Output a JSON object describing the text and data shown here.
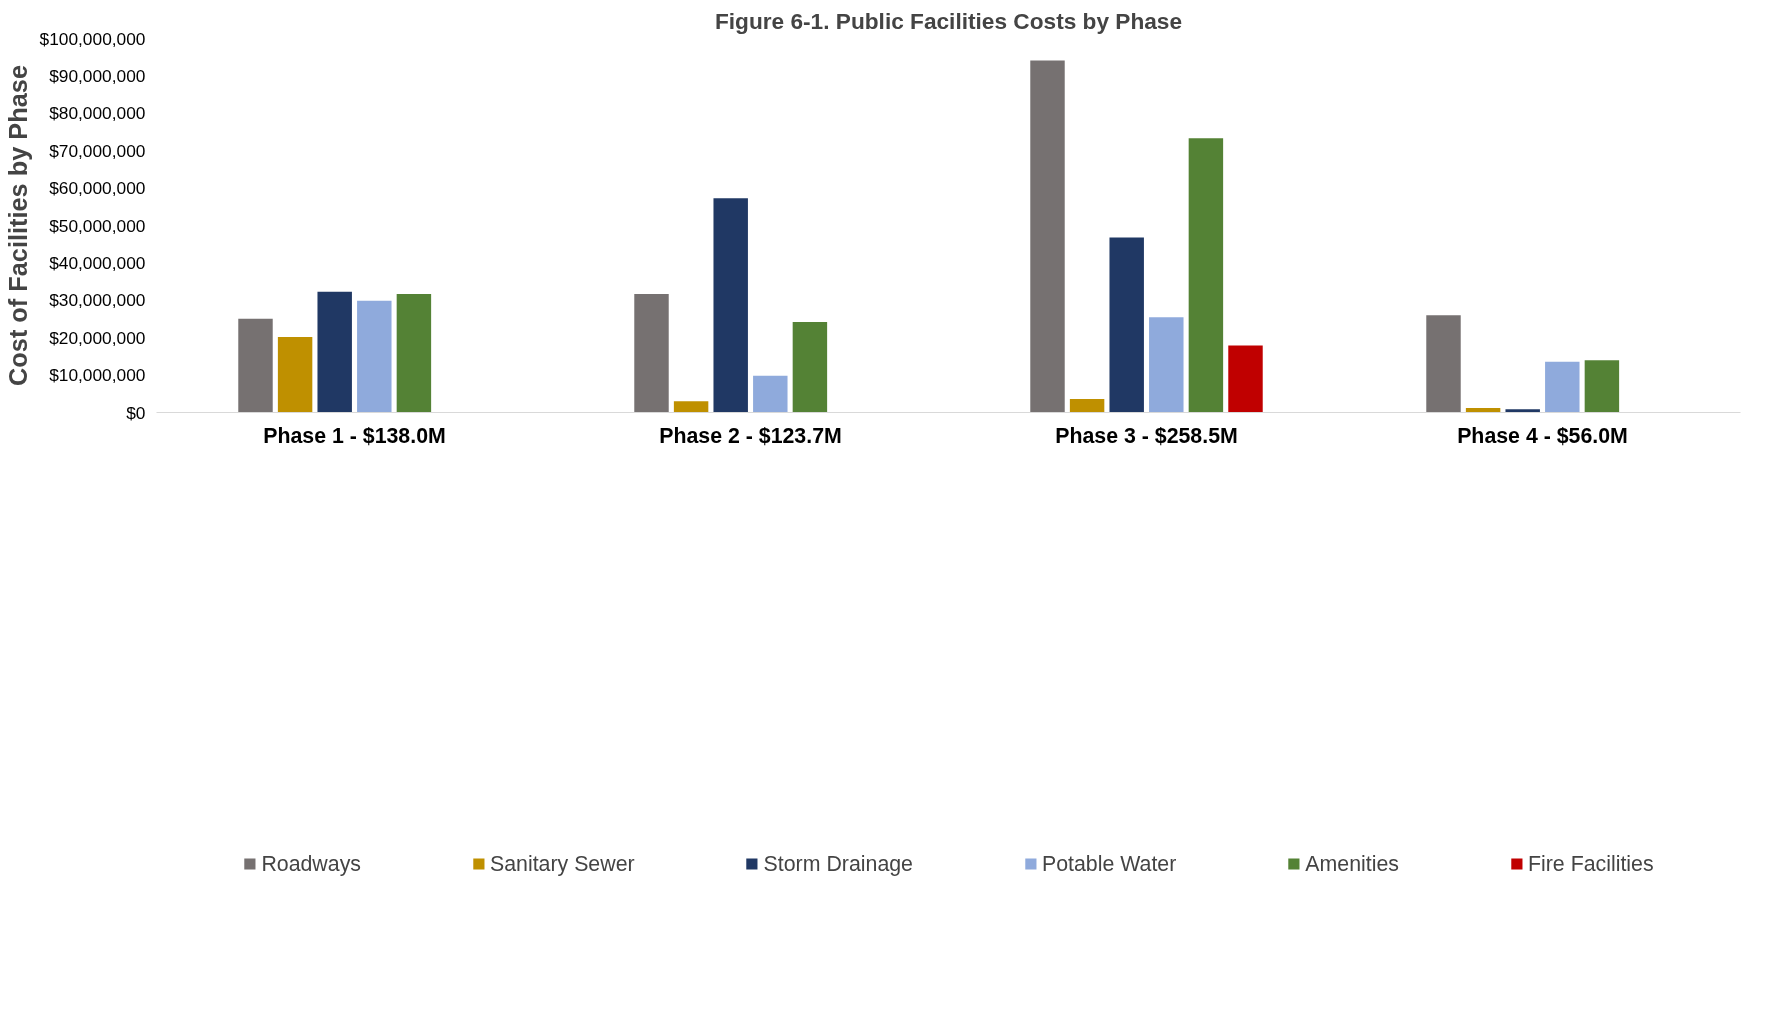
{
  "chart_data": {
    "type": "bar",
    "title": "Figure 6-1. Public Facilities Costs by Phase",
    "ylabel": "Cost of Facilities by Phase",
    "categories": [
      "Phase 1 - $138.0M",
      "Phase 2 - $123.7M",
      "Phase 3 - $258.5M",
      "Phase 4 - $56.0M"
    ],
    "series": [
      {
        "name": "Roadways",
        "color": "#767171",
        "values": [
          25100000,
          31700000,
          94100000,
          26000000
        ]
      },
      {
        "name": "Sanitary Sewer",
        "color": "#bf9000",
        "values": [
          20200000,
          3000000,
          3600000,
          1200000
        ]
      },
      {
        "name": "Storm Drainage",
        "color": "#203864",
        "values": [
          32300000,
          57300000,
          46800000,
          900000
        ]
      },
      {
        "name": "Potable Water",
        "color": "#8faadc",
        "values": [
          29900000,
          9800000,
          25500000,
          13600000
        ]
      },
      {
        "name": "Amenities",
        "color": "#548235",
        "values": [
          31700000,
          24200000,
          73300000,
          14000000
        ]
      },
      {
        "name": "Fire Facilities",
        "color": "#c00000",
        "values": [
          null,
          null,
          17900000,
          null
        ]
      }
    ],
    "ylim": [
      0,
      100000000
    ],
    "yticks": [
      {
        "value": 0,
        "label": "$0"
      },
      {
        "value": 10000000,
        "label": "$10,000,000"
      },
      {
        "value": 20000000,
        "label": "$20,000,000"
      },
      {
        "value": 30000000,
        "label": "$30,000,000"
      },
      {
        "value": 40000000,
        "label": "$40,000,000"
      },
      {
        "value": 50000000,
        "label": "$50,000,000"
      },
      {
        "value": 60000000,
        "label": "$60,000,000"
      },
      {
        "value": 70000000,
        "label": "$70,000,000"
      },
      {
        "value": 80000000,
        "label": "$80,000,000"
      },
      {
        "value": 90000000,
        "label": "$90,000,000"
      },
      {
        "value": 100000000,
        "label": "$100,000,000"
      }
    ],
    "grid": false,
    "legend": "bottom"
  }
}
